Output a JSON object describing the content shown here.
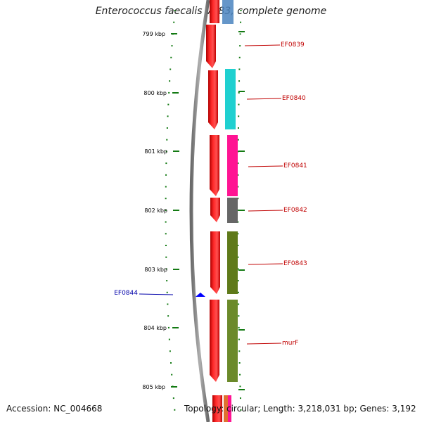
{
  "title": "Enterococcus faecalis V583, complete genome",
  "accession_text": "Accession: NC_004668",
  "topology_text": "Topology: circular; Length: 3,218,031 bp; Genes: 3,192",
  "colors": {
    "backbone": "#8a8a8a",
    "tick": "#137a13",
    "cds": "#ff0000",
    "label_forward": "#c00000",
    "label_reverse": "#0000aa"
  },
  "coordinate_labels": [
    "799 kbp",
    "800 kbp",
    "801 kbp",
    "802 kbp",
    "803 kbp",
    "804 kbp",
    "805 kbp"
  ],
  "genes": [
    {
      "name": "EF0839",
      "strand": "+",
      "color": "#ff0000",
      "cog_color": "#3a6fb0"
    },
    {
      "name": "EF0840",
      "strand": "+",
      "color": "#ff0000",
      "cog_color": "#1fd0d0"
    },
    {
      "name": "EF0841",
      "strand": "+",
      "color": "#ff0000",
      "cog_color": "#ff1493"
    },
    {
      "name": "EF0842",
      "strand": "+",
      "color": "#ff0000",
      "cog_color": "#666666"
    },
    {
      "name": "EF0843",
      "strand": "+",
      "color": "#ff0000",
      "cog_color": "#5f7a1a"
    },
    {
      "name": "murF",
      "strand": "+",
      "color": "#ff0000",
      "cog_color": "#6b8a2a"
    },
    {
      "name": "EF0844",
      "strand": "-",
      "color": "#0000ff"
    }
  ]
}
